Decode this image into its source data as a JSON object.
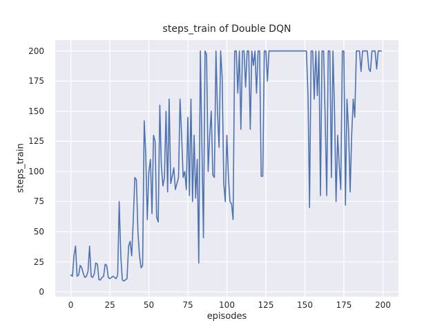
{
  "chart_data": {
    "type": "line",
    "title": "steps_train of Double DQN",
    "xlabel": "episodes",
    "ylabel": "steps_train",
    "xticks": [
      0,
      25,
      50,
      75,
      100,
      125,
      150,
      175,
      200
    ],
    "yticks": [
      0,
      25,
      50,
      75,
      100,
      125,
      150,
      175,
      200
    ],
    "xlim": [
      -10,
      210
    ],
    "ylim": [
      -4,
      209
    ],
    "grid": true,
    "legend": false,
    "line_color": "#4c72b0",
    "axes_bg_color": "#eaeaf2",
    "grid_color": "#ffffff",
    "series_name": "steps_train",
    "x_is_index": true,
    "values": [
      14,
      13,
      30,
      38,
      13,
      14,
      22,
      20,
      15,
      12,
      13,
      17,
      38,
      13,
      12,
      15,
      24,
      23,
      10,
      10,
      12,
      13,
      23,
      22,
      12,
      11,
      12,
      13,
      12,
      11,
      14,
      75,
      30,
      10,
      9,
      10,
      11,
      38,
      42,
      30,
      60,
      95,
      93,
      50,
      30,
      20,
      22,
      142,
      115,
      60,
      100,
      110,
      65,
      130,
      125,
      62,
      58,
      155,
      105,
      88,
      95,
      150,
      83,
      160,
      90,
      96,
      103,
      85,
      90,
      95,
      160,
      130,
      95,
      100,
      85,
      145,
      80,
      160,
      75,
      130,
      78,
      110,
      24,
      200,
      120,
      45,
      200,
      197,
      100,
      130,
      150,
      97,
      95,
      200,
      150,
      120,
      200,
      178,
      90,
      75,
      130,
      95,
      75,
      73,
      60,
      200,
      200,
      165,
      200,
      135,
      200,
      200,
      170,
      200,
      200,
      135,
      200,
      188,
      200,
      165,
      200,
      200,
      96,
      96,
      200,
      200,
      175,
      200,
      200,
      200,
      200,
      200,
      200,
      200,
      200,
      200,
      200,
      200,
      200,
      200,
      200,
      200,
      200,
      200,
      200,
      200,
      200,
      200,
      200,
      200,
      200,
      200,
      163,
      70,
      200,
      200,
      160,
      200,
      163,
      200,
      80,
      200,
      200,
      145,
      80,
      200,
      200,
      95,
      200,
      150,
      75,
      130,
      105,
      85,
      200,
      200,
      72,
      160,
      135,
      83,
      130,
      160,
      145,
      200,
      200,
      200,
      183,
      200,
      200,
      200,
      200,
      185,
      183,
      200,
      200,
      200,
      185,
      200,
      200,
      200
    ]
  }
}
